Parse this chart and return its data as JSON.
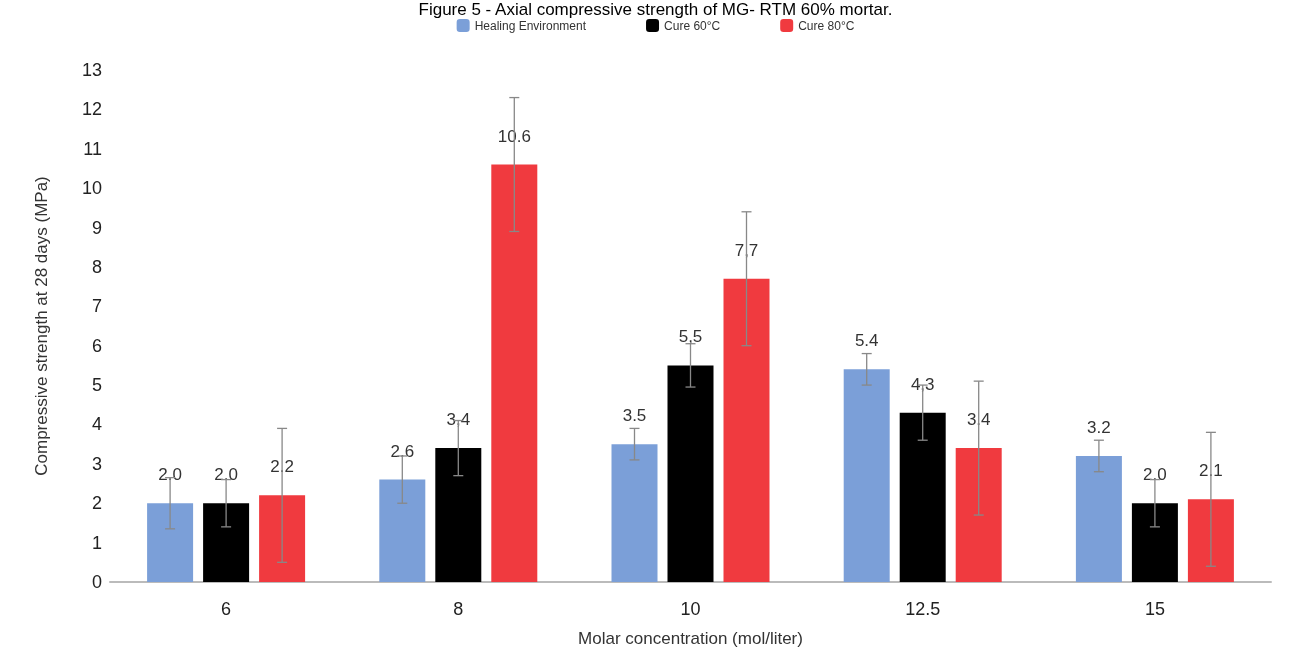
{
  "chart_data": {
    "type": "bar",
    "title": "Figure 5 - Axial compressive strength of MG- RTM 60% mortar.",
    "xlabel": "Molar concentration (mol/liter)",
    "ylabel": "Compressive strength at 28 days (MPa)",
    "categories": [
      "6",
      "8",
      "10",
      "12.5",
      "15"
    ],
    "series": [
      {
        "name": "Healing Environment",
        "color": "#7b9fd8",
        "values": [
          2.0,
          2.6,
          3.5,
          5.4,
          3.2
        ],
        "errors": [
          0.65,
          0.6,
          0.4,
          0.4,
          0.4
        ],
        "value_labels": [
          "2.0",
          "2.6",
          "3.5",
          "5.4",
          "3.2"
        ]
      },
      {
        "name": "Cure 60°C",
        "color": "#000000",
        "values": [
          2.0,
          3.4,
          5.5,
          4.3,
          2.0
        ],
        "errors": [
          0.6,
          0.7,
          0.55,
          0.7,
          0.6
        ],
        "value_labels": [
          "2.0",
          "3,4",
          "5,5",
          "4,3",
          "2.0"
        ]
      },
      {
        "name": "Cure 80°C",
        "color": "#f03a3f",
        "values": [
          2.2,
          10.6,
          7.7,
          3.4,
          2.1
        ],
        "errors": [
          1.7,
          1.7,
          1.7,
          1.7,
          1.7
        ],
        "value_labels": [
          "2.2",
          "10.6",
          "7,7",
          "3.4",
          "2.1"
        ]
      }
    ],
    "ylim": [
      0,
      13
    ],
    "yticks": [
      0,
      1,
      2,
      3,
      4,
      5,
      6,
      7,
      8,
      9,
      10,
      11,
      12,
      13
    ],
    "grid": false,
    "legend": "top"
  }
}
